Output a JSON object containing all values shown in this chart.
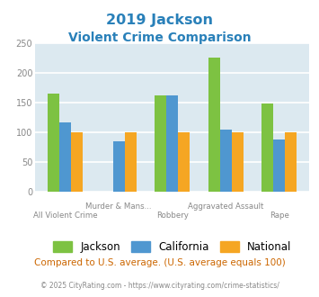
{
  "title_line1": "2019 Jackson",
  "title_line2": "Violent Crime Comparison",
  "title_color": "#2980b9",
  "categories": [
    "All Violent Crime",
    "Murder & Mans...",
    "Robbery",
    "Aggravated Assault",
    "Rape"
  ],
  "label_line1": [
    "",
    "Murder & Mans...",
    "",
    "Aggravated Assault",
    ""
  ],
  "label_line2": [
    "All Violent Crime",
    "",
    "Robbery",
    "",
    "Rape"
  ],
  "groups": [
    "Jackson",
    "California",
    "National"
  ],
  "values": {
    "Jackson": [
      165,
      null,
      162,
      225,
      148
    ],
    "California": [
      117,
      84,
      162,
      105,
      87
    ],
    "National": [
      100,
      100,
      100,
      100,
      100
    ]
  },
  "bar_colors": {
    "Jackson": "#7dc242",
    "California": "#4f97d0",
    "National": "#f5a623"
  },
  "ylim": [
    0,
    250
  ],
  "yticks": [
    0,
    50,
    100,
    150,
    200,
    250
  ],
  "plot_bg_color": "#dce9f0",
  "grid_color": "#ffffff",
  "ytick_color": "#888888",
  "xtick_color": "#888888",
  "footer_note": "Compared to U.S. average. (U.S. average equals 100)",
  "footer_note_color": "#cc6600",
  "copyright_text": "© 2025 CityRating.com - https://www.cityrating.com/crime-statistics/",
  "copyright_color": "#888888"
}
